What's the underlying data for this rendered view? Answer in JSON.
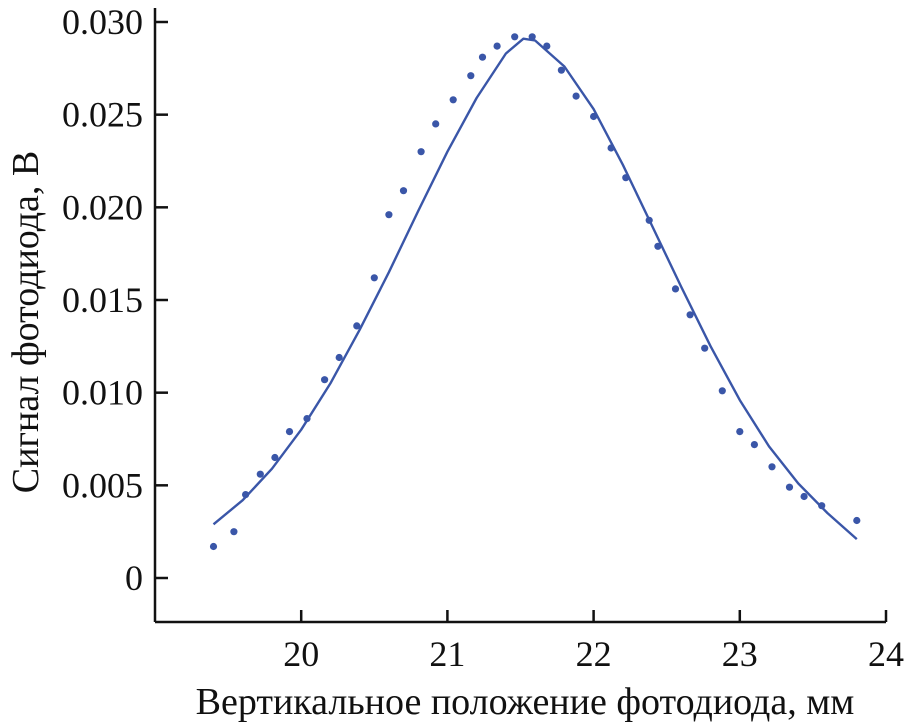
{
  "chart_data": {
    "type": "scatter",
    "title": "",
    "xlabel": "Вертикальное положение фотодиода, мм",
    "ylabel": "Сигнал фотодиода, В",
    "xlim": [
      19.0,
      24.0
    ],
    "ylim": [
      0,
      0.03
    ],
    "xticks": [
      20,
      21,
      22,
      23,
      24
    ],
    "xtick_labels": [
      "20",
      "21",
      "22",
      "23",
      "24"
    ],
    "yticks": [
      0,
      0.005,
      0.01,
      0.015,
      0.02,
      0.025,
      0.03
    ],
    "ytick_labels": [
      "0",
      "0.005",
      "0.010",
      "0.015",
      "0.020",
      "0.025",
      "0.030"
    ],
    "grid": false,
    "legend": "none",
    "colors": {
      "series": "#3a56a8",
      "axis": "#111111"
    },
    "series": [
      {
        "kind": "points",
        "x": [
          19.4,
          19.54,
          19.62,
          19.72,
          19.82,
          19.92,
          20.04,
          20.16,
          20.26,
          20.38,
          20.5,
          20.6,
          20.7,
          20.82,
          20.92,
          21.04,
          21.16,
          21.24,
          21.34,
          21.46,
          21.58,
          21.68,
          21.78,
          21.88,
          22.0,
          22.12,
          22.22,
          22.38,
          22.44,
          22.56,
          22.66,
          22.76,
          22.88,
          23.0,
          23.1,
          23.22,
          23.34,
          23.44,
          23.56,
          23.8
        ],
        "y": [
          0.0017,
          0.0025,
          0.0045,
          0.0056,
          0.0065,
          0.0079,
          0.0086,
          0.0107,
          0.0119,
          0.0136,
          0.0162,
          0.0196,
          0.0209,
          0.023,
          0.0245,
          0.0258,
          0.0271,
          0.0281,
          0.0287,
          0.0292,
          0.0292,
          0.0287,
          0.0274,
          0.026,
          0.0249,
          0.0232,
          0.0216,
          0.0193,
          0.0179,
          0.0156,
          0.0142,
          0.0124,
          0.0101,
          0.0079,
          0.0072,
          0.006,
          0.0049,
          0.0044,
          0.0039,
          0.0031
        ]
      },
      {
        "kind": "line",
        "x": [
          19.4,
          19.6,
          19.8,
          20.0,
          20.2,
          20.4,
          20.6,
          20.8,
          21.0,
          21.2,
          21.4,
          21.52,
          21.6,
          21.8,
          22.0,
          22.2,
          22.4,
          22.6,
          22.8,
          23.0,
          23.2,
          23.4,
          23.6,
          23.8
        ],
        "y": [
          0.0029,
          0.0042,
          0.0059,
          0.008,
          0.0105,
          0.0134,
          0.0165,
          0.0198,
          0.023,
          0.0259,
          0.0283,
          0.0291,
          0.029,
          0.0276,
          0.0253,
          0.0223,
          0.019,
          0.0157,
          0.0125,
          0.0096,
          0.0071,
          0.0051,
          0.0035,
          0.0021
        ]
      }
    ]
  }
}
